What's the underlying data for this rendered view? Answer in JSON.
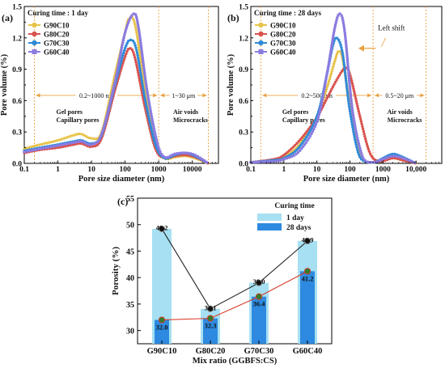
{
  "chart_data": [
    {
      "type": "line",
      "panel_label": "(a)",
      "legend_title": "Curing time : 1 day",
      "xlabel": "Pore size diameter (nm)",
      "ylabel": "Pore volume (%)",
      "x_scale": "log",
      "xlim": [
        0.1,
        60000
      ],
      "ylim": [
        0,
        1.5
      ],
      "x_ticks": [
        "0.1",
        "1",
        "10",
        "100",
        "1000",
        "10000"
      ],
      "y_ticks": [
        "0.0",
        "0.3",
        "0.6",
        "0.9",
        "1.2",
        "1.5"
      ],
      "legend_position": "top-left",
      "grid": false,
      "regions": [
        {
          "text": "0.2~1000 nm",
          "from": 0.2,
          "to": 1000,
          "y": 0.65,
          "color": "#e8a040"
        },
        {
          "text": "1~30 μm",
          "from": 1000,
          "to": 30000,
          "y": 0.65,
          "color": "#e8a040"
        }
      ],
      "annotations": [
        {
          "lines": [
            "Gel pores",
            "Capillary pores"
          ],
          "x": 1.0,
          "y": 0.47
        },
        {
          "lines": [
            "Air voids",
            "Microcracks"
          ],
          "x": 3000,
          "y": 0.47
        }
      ],
      "series": [
        {
          "name": "G90C10",
          "color": "#e8c34a",
          "marker": "circle",
          "points": [
            [
              0.1,
              0.14
            ],
            [
              0.3,
              0.18
            ],
            [
              1,
              0.22
            ],
            [
              3,
              0.27
            ],
            [
              5,
              0.28
            ],
            [
              10,
              0.24
            ],
            [
              20,
              0.3
            ],
            [
              50,
              0.85
            ],
            [
              100,
              1.25
            ],
            [
              130,
              1.38
            ],
            [
              200,
              1.32
            ],
            [
              400,
              0.7
            ],
            [
              800,
              0.2
            ],
            [
              1500,
              0.05
            ],
            [
              3000,
              0.06
            ],
            [
              6000,
              0.07
            ],
            [
              12000,
              0.05
            ],
            [
              30000,
              0.0
            ]
          ]
        },
        {
          "name": "G80C20",
          "color": "#d9534f",
          "marker": "circle",
          "points": [
            [
              0.1,
              0.1
            ],
            [
              0.3,
              0.13
            ],
            [
              1,
              0.15
            ],
            [
              3,
              0.18
            ],
            [
              5,
              0.19
            ],
            [
              10,
              0.16
            ],
            [
              20,
              0.24
            ],
            [
              50,
              0.7
            ],
            [
              100,
              1.02
            ],
            [
              140,
              1.1
            ],
            [
              200,
              1.0
            ],
            [
              400,
              0.52
            ],
            [
              800,
              0.14
            ],
            [
              1500,
              0.05
            ],
            [
              3000,
              0.07
            ],
            [
              6000,
              0.08
            ],
            [
              12000,
              0.06
            ],
            [
              30000,
              0.0
            ]
          ]
        },
        {
          "name": "G70C30",
          "color": "#2e8bd8",
          "marker": "circle",
          "points": [
            [
              0.1,
              0.12
            ],
            [
              0.3,
              0.15
            ],
            [
              1,
              0.18
            ],
            [
              3,
              0.21
            ],
            [
              5,
              0.22
            ],
            [
              10,
              0.19
            ],
            [
              20,
              0.27
            ],
            [
              50,
              0.75
            ],
            [
              100,
              1.1
            ],
            [
              150,
              1.18
            ],
            [
              220,
              1.08
            ],
            [
              400,
              0.6
            ],
            [
              800,
              0.18
            ],
            [
              1500,
              0.05
            ],
            [
              3000,
              0.08
            ],
            [
              6000,
              0.1
            ],
            [
              12000,
              0.07
            ],
            [
              30000,
              0.0
            ]
          ]
        },
        {
          "name": "G60C40",
          "color": "#8a7be0",
          "marker": "square",
          "points": [
            [
              0.1,
              0.11
            ],
            [
              0.3,
              0.14
            ],
            [
              1,
              0.17
            ],
            [
              3,
              0.2
            ],
            [
              5,
              0.21
            ],
            [
              10,
              0.18
            ],
            [
              20,
              0.28
            ],
            [
              50,
              0.78
            ],
            [
              100,
              1.25
            ],
            [
              180,
              1.43
            ],
            [
              250,
              1.3
            ],
            [
              450,
              0.7
            ],
            [
              900,
              0.2
            ],
            [
              1500,
              0.06
            ],
            [
              3000,
              0.09
            ],
            [
              6000,
              0.1
            ],
            [
              12000,
              0.08
            ],
            [
              30000,
              0.0
            ]
          ]
        }
      ]
    },
    {
      "type": "line",
      "panel_label": "(b)",
      "legend_title": "Curing time : 28 days",
      "xlabel": "Pore size diameter (nm)",
      "ylabel": "Pore volume (%)",
      "x_scale": "log",
      "xlim": [
        0.1,
        60000
      ],
      "ylim": [
        0,
        1.5
      ],
      "x_ticks": [
        "0.1",
        "1",
        "10",
        "100",
        "1000",
        "10,000"
      ],
      "y_ticks": [
        "0.0",
        "0.3",
        "0.6",
        "0.9",
        "1.2",
        "1.5"
      ],
      "legend_position": "top-left",
      "grid": false,
      "regions": [
        {
          "text": "0.2~500 nm",
          "from": 0.2,
          "to": 500,
          "y": 0.65,
          "color": "#e8a040"
        },
        {
          "text": "0.5~20 μm",
          "from": 500,
          "to": 20000,
          "y": 0.65,
          "color": "#e8a040"
        }
      ],
      "annotations": [
        {
          "lines": [
            "Gel pores",
            "Capillary pores"
          ],
          "x": 1.0,
          "y": 0.47
        },
        {
          "lines": [
            "Air voids",
            "Microcracks"
          ],
          "x": 1500,
          "y": 0.47
        }
      ],
      "arrow_label": "Left shift",
      "series": [
        {
          "name": "G90C10",
          "color": "#e8c34a",
          "marker": "circle",
          "points": [
            [
              0.1,
              0.01
            ],
            [
              0.5,
              0.03
            ],
            [
              1,
              0.06
            ],
            [
              3,
              0.18
            ],
            [
              10,
              0.45
            ],
            [
              20,
              0.72
            ],
            [
              35,
              0.98
            ],
            [
              45,
              1.07
            ],
            [
              60,
              1.0
            ],
            [
              100,
              0.55
            ],
            [
              200,
              0.08
            ],
            [
              400,
              0.01
            ],
            [
              1000,
              0.03
            ],
            [
              2000,
              0.05
            ],
            [
              4000,
              0.03
            ],
            [
              10000,
              0.0
            ]
          ]
        },
        {
          "name": "G80C20",
          "color": "#d9534f",
          "marker": "circle",
          "points": [
            [
              0.1,
              0.01
            ],
            [
              0.5,
              0.04
            ],
            [
              1,
              0.08
            ],
            [
              3,
              0.22
            ],
            [
              10,
              0.44
            ],
            [
              20,
              0.62
            ],
            [
              40,
              0.8
            ],
            [
              70,
              0.91
            ],
            [
              100,
              0.85
            ],
            [
              200,
              0.45
            ],
            [
              400,
              0.1
            ],
            [
              800,
              0.02
            ],
            [
              2000,
              0.05
            ],
            [
              4000,
              0.03
            ],
            [
              10000,
              0.0
            ]
          ]
        },
        {
          "name": "G70C30",
          "color": "#2e8bd8",
          "marker": "circle",
          "points": [
            [
              0.1,
              0.01
            ],
            [
              0.5,
              0.03
            ],
            [
              1,
              0.05
            ],
            [
              3,
              0.16
            ],
            [
              10,
              0.45
            ],
            [
              20,
              0.85
            ],
            [
              30,
              1.12
            ],
            [
              40,
              1.2
            ],
            [
              60,
              1.05
            ],
            [
              100,
              0.5
            ],
            [
              200,
              0.06
            ],
            [
              500,
              0.01
            ],
            [
              1000,
              0.05
            ],
            [
              2000,
              0.09
            ],
            [
              4000,
              0.06
            ],
            [
              10000,
              0.0
            ]
          ]
        },
        {
          "name": "G60C40",
          "color": "#8a7be0",
          "marker": "square",
          "points": [
            [
              0.1,
              0.01
            ],
            [
              0.5,
              0.02
            ],
            [
              1,
              0.04
            ],
            [
              3,
              0.12
            ],
            [
              10,
              0.4
            ],
            [
              20,
              0.85
            ],
            [
              35,
              1.3
            ],
            [
              50,
              1.43
            ],
            [
              70,
              1.25
            ],
            [
              120,
              0.5
            ],
            [
              250,
              0.05
            ],
            [
              500,
              0.01
            ],
            [
              1000,
              0.04
            ],
            [
              2000,
              0.07
            ],
            [
              4000,
              0.05
            ],
            [
              10000,
              0.0
            ]
          ]
        }
      ]
    },
    {
      "type": "bar",
      "panel_label": "(c)",
      "legend_title": "Curing time",
      "xlabel": "Mix ratio (GGBFS:CS)",
      "ylabel": "Porosity (%)",
      "categories": [
        "G90C10",
        "G80C20",
        "G70C30",
        "G60C40"
      ],
      "ylim": [
        27.5,
        55
      ],
      "y_ticks": [
        "30",
        "35",
        "40",
        "45",
        "50",
        "55"
      ],
      "legend_position": "top-right",
      "grid": false,
      "series": [
        {
          "name": "1 day",
          "color": "#a6e0f2",
          "values": [
            49.2,
            34.1,
            39.0,
            46.9
          ],
          "labels": [
            "49.2",
            "34.1",
            "39.0",
            "46.9"
          ]
        },
        {
          "name": "28 days",
          "color": "#2d8ae0",
          "values": [
            32.0,
            32.3,
            36.4,
            41.2
          ],
          "labels": [
            "32.0",
            "32.3",
            "36.4",
            "41.2"
          ]
        }
      ],
      "line_colors": {
        "1 day": "#222222",
        "28 days": "#d83b2a"
      }
    }
  ]
}
